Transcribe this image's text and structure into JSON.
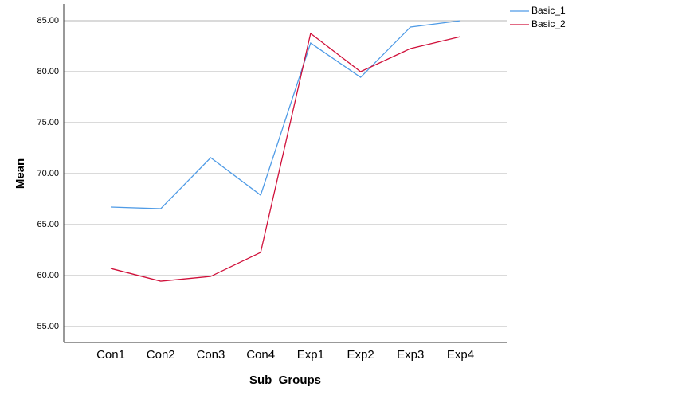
{
  "chart_data": {
    "type": "line",
    "x_label": "Sub_Groups",
    "y_label": "Mean",
    "categories": [
      "Con1",
      "Con2",
      "Con3",
      "Con4",
      "Exp1",
      "Exp2",
      "Exp3",
      "Exp4"
    ],
    "series": [
      {
        "name": "Basic_1",
        "color": "#4f9be6",
        "values": [
          66.72,
          66.56,
          71.56,
          67.89,
          82.81,
          79.45,
          84.38,
          85.0
        ]
      },
      {
        "name": "Basic_2",
        "color": "#d0103a",
        "values": [
          60.7,
          59.45,
          59.92,
          62.27,
          83.75,
          80.0,
          82.27,
          83.44
        ]
      }
    ],
    "ylim": [
      53.44,
      86.64
    ],
    "yticks": [
      {
        "value": 55,
        "label": "55.00"
      },
      {
        "value": 60,
        "label": "60.00"
      },
      {
        "value": 65,
        "label": "65.00"
      },
      {
        "value": 70,
        "label": "70.00"
      },
      {
        "value": 75,
        "label": "75.00"
      },
      {
        "value": 80,
        "label": "80.00"
      },
      {
        "value": 85,
        "label": "85.00"
      }
    ],
    "grid": true,
    "legend": "top-right"
  }
}
